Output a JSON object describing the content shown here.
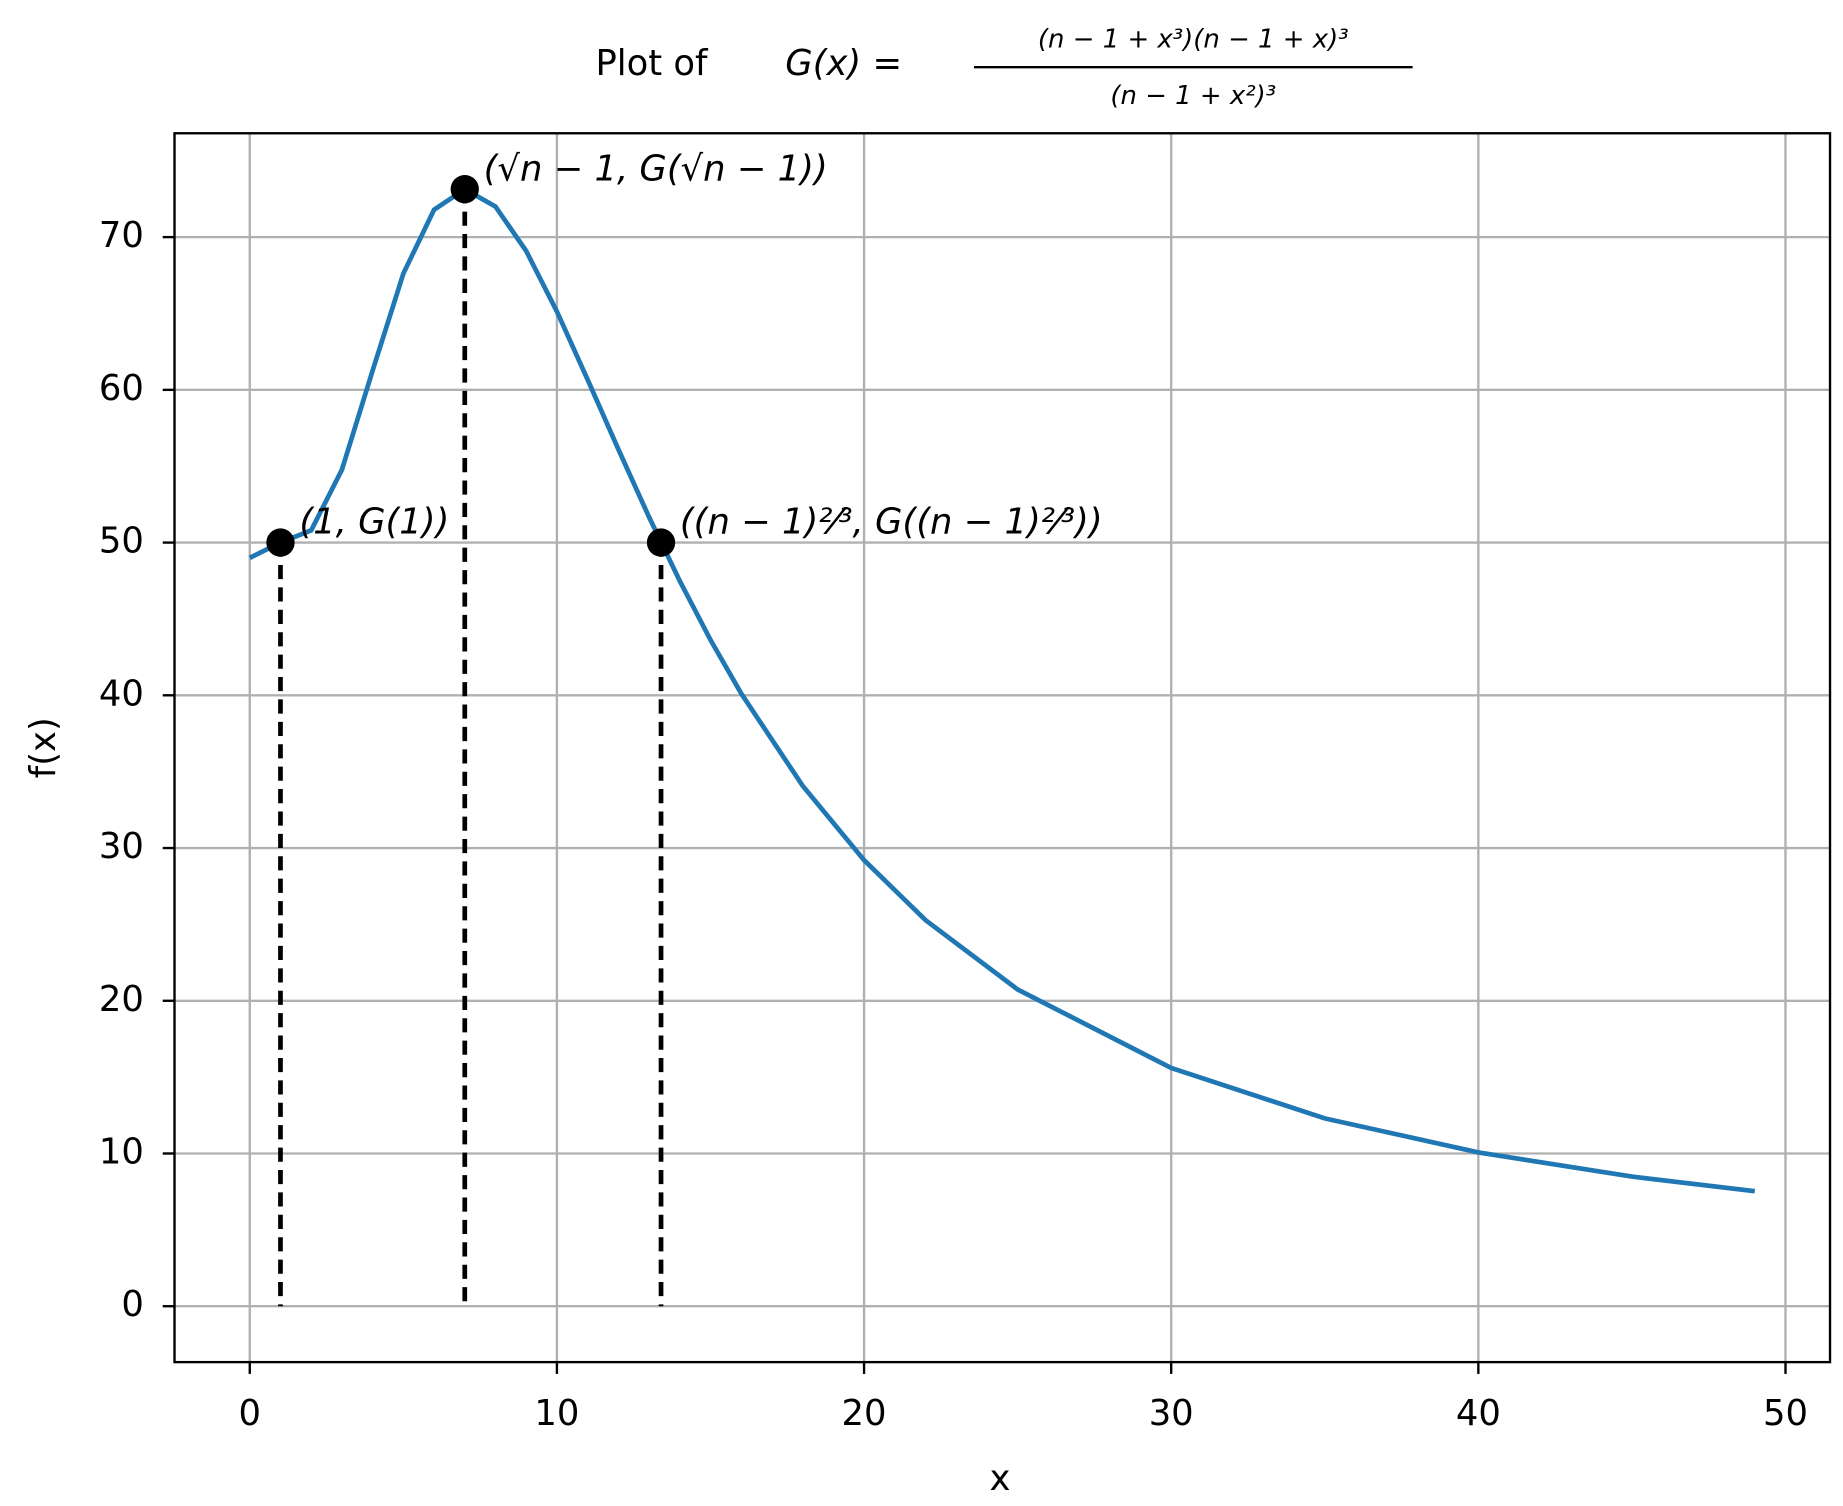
{
  "chart_data": {
    "type": "line",
    "title_prefix": "Plot of",
    "title_lhs": "G(x) =",
    "title_numerator": "(n − 1 + x³)(n − 1 + x)³",
    "title_denominator": "(n − 1 + x²)³",
    "x_label": "x",
    "y_label": "f(x)",
    "xlim": [
      -2.45,
      51.45
    ],
    "ylim": [
      -3.66,
      76.8
    ],
    "xticks": [
      0,
      10,
      20,
      30,
      40,
      50
    ],
    "yticks": [
      0,
      10,
      20,
      30,
      40,
      50,
      60,
      70
    ],
    "grid": true,
    "x": [
      0,
      1,
      2,
      3,
      4,
      5,
      6,
      7,
      8,
      9,
      10,
      11,
      12,
      13,
      14,
      15,
      16,
      18,
      20,
      22,
      25,
      30,
      35,
      40,
      45,
      49
    ],
    "series": [
      {
        "color": "#1f77b4",
        "values": [
          49,
          50,
          50.8,
          54.77,
          61.26,
          67.61,
          71.79,
          73.14,
          72.0,
          69.09,
          65.13,
          60.67,
          56.11,
          51.67,
          47.49,
          43.63,
          40.12,
          34.08,
          29.21,
          25.28,
          20.74,
          15.6,
          12.3,
          10.07,
          8.49,
          7.53
        ]
      }
    ],
    "points": {
      "color": "#000000",
      "x": [
        1,
        7,
        13.39
      ],
      "y": [
        50,
        73.14,
        50
      ],
      "labels": [
        "(1, G(1))",
        "(√n − 1, G(√n − 1))",
        "((n − 1)²⁄³, G((n − 1)²⁄³))"
      ]
    }
  }
}
